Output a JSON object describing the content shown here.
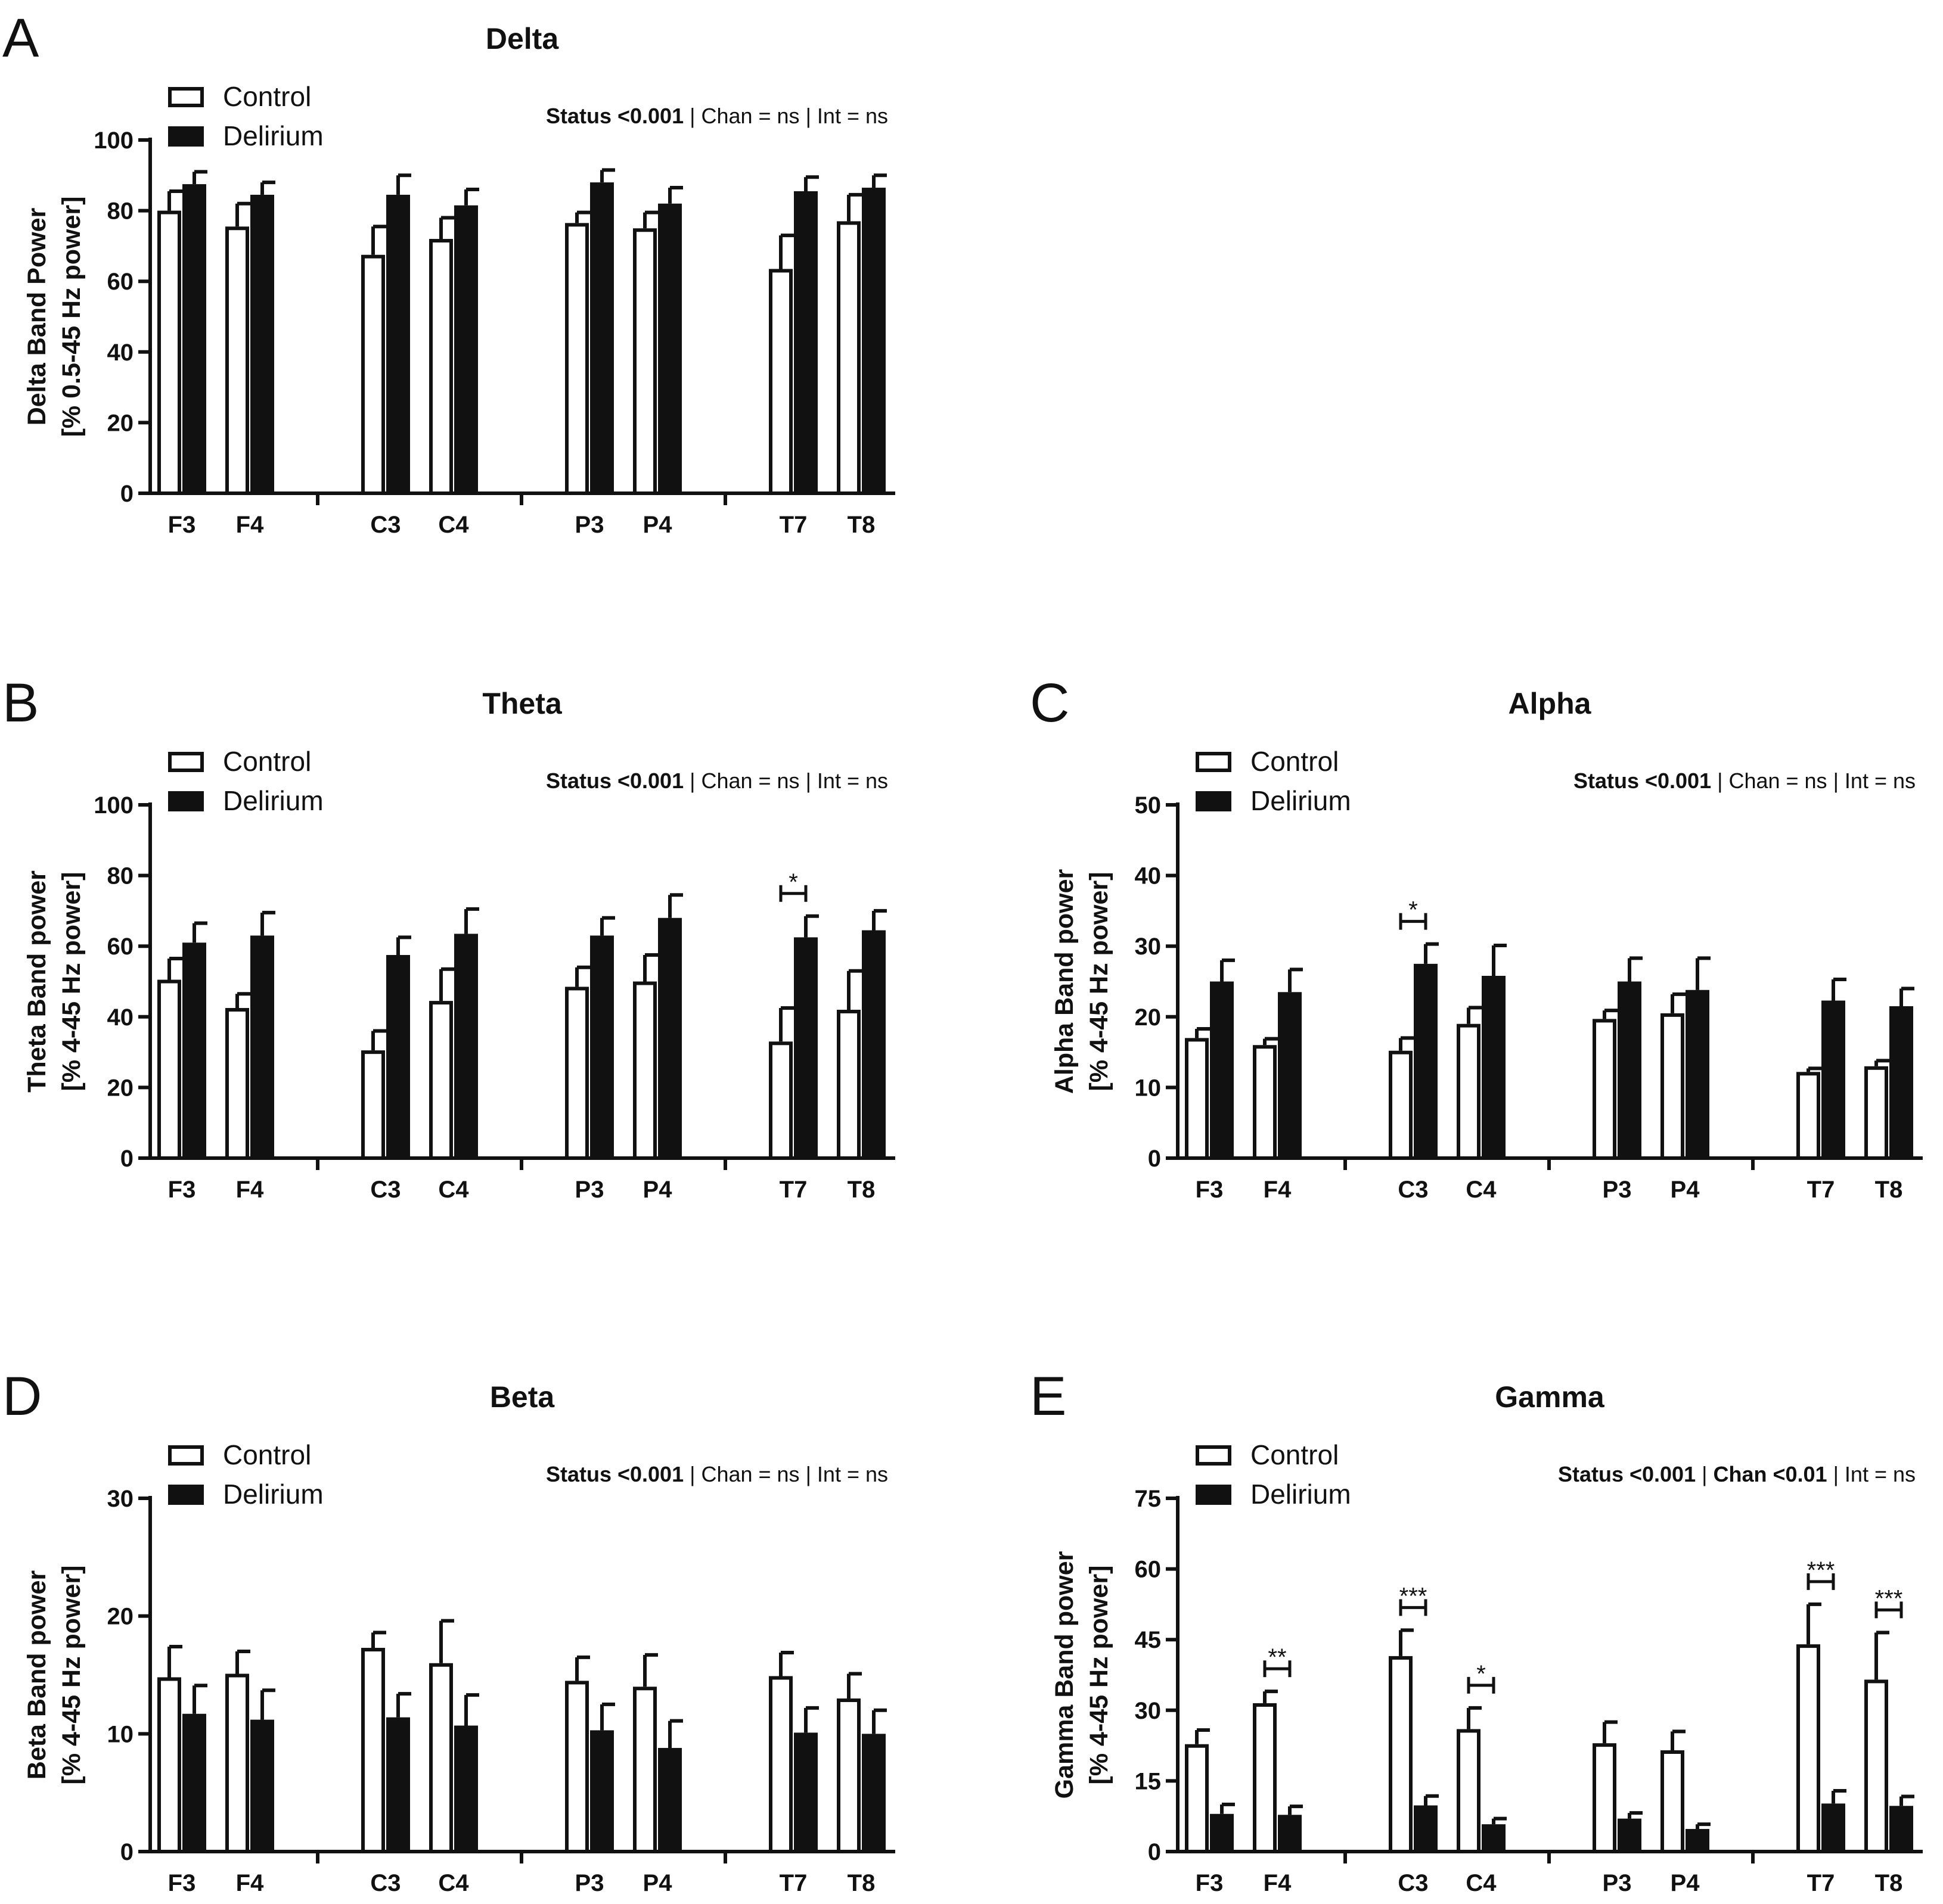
{
  "legend_labels": [
    "Control",
    "Delirium"
  ],
  "chart_data": [
    {
      "id": "A",
      "type": "bar",
      "panel_letter": "A",
      "title": "Delta",
      "ylabel_line1": "Delta Band Power",
      "ylabel_line2": "[% 0.5-45 Hz power]",
      "ylim": [
        0,
        100
      ],
      "yticks": [
        "0",
        "20",
        "40",
        "60",
        "80",
        "100"
      ],
      "categories": [
        "F3",
        "F4",
        "C3",
        "C4",
        "P3",
        "P4",
        "T7",
        "T8"
      ],
      "series": [
        {
          "name": "Control",
          "values": [
            80,
            75.5,
            67.5,
            72,
            76.5,
            75,
            63.5,
            77
          ],
          "errors": [
            5.5,
            6.5,
            8,
            6,
            3,
            4.5,
            9.5,
            7.5
          ]
        },
        {
          "name": "Delirium",
          "values": [
            87.5,
            84.5,
            84.5,
            81.5,
            88,
            82,
            85.5,
            86.5
          ],
          "errors": [
            3.5,
            3.5,
            5.5,
            4.5,
            3.5,
            4.5,
            4,
            3.5
          ]
        }
      ],
      "stats": [
        {
          "text": "Status <0.001",
          "bold": true
        },
        {
          "text": " | Chan = ns | Int = ns",
          "bold": false
        }
      ],
      "significance": []
    },
    {
      "id": "B",
      "type": "bar",
      "panel_letter": "B",
      "title": "Theta",
      "ylabel_line1": "Theta Band power",
      "ylabel_line2": "[% 4-45 Hz power]",
      "ylim": [
        0,
        100
      ],
      "yticks": [
        "0",
        "20",
        "40",
        "60",
        "80",
        "100"
      ],
      "categories": [
        "F3",
        "F4",
        "C3",
        "C4",
        "P3",
        "P4",
        "T7",
        "T8"
      ],
      "series": [
        {
          "name": "Control",
          "values": [
            50.5,
            42.5,
            30.5,
            44.5,
            48.5,
            50,
            33,
            42
          ],
          "errors": [
            6,
            4,
            5.5,
            9,
            5.5,
            7.5,
            9.5,
            11
          ]
        },
        {
          "name": "Delirium",
          "values": [
            61,
            63,
            57.5,
            63.5,
            63,
            68,
            62.5,
            64.5
          ],
          "errors": [
            5.5,
            6.5,
            5,
            7,
            5,
            6.5,
            6,
            5.5
          ]
        }
      ],
      "stats": [
        {
          "text": "Status <0.001",
          "bold": true
        },
        {
          "text": " | Chan = ns | Int = ns",
          "bold": false
        }
      ],
      "significance": [
        {
          "index": 6,
          "label": "*"
        }
      ]
    },
    {
      "id": "C",
      "type": "bar",
      "panel_letter": "C",
      "title": "Alpha",
      "ylabel_line1": "Alpha Band power",
      "ylabel_line2": "[% 4-45 Hz power]",
      "ylim": [
        0,
        50
      ],
      "yticks": [
        "0",
        "10",
        "20",
        "30",
        "40",
        "50"
      ],
      "categories": [
        "F3",
        "F4",
        "C3",
        "C4",
        "P3",
        "P4",
        "T7",
        "T8"
      ],
      "series": [
        {
          "name": "Control",
          "values": [
            17,
            16,
            15.2,
            19,
            19.7,
            20.5,
            12.2,
            13
          ],
          "errors": [
            1.3,
            0.9,
            1.8,
            2.3,
            1.2,
            2.7,
            0.5,
            0.8
          ]
        },
        {
          "name": "Delirium",
          "values": [
            25,
            23.5,
            27.5,
            25.8,
            25,
            23.8,
            22.3,
            21.5
          ],
          "errors": [
            3,
            3.2,
            2.8,
            4.3,
            3.3,
            4.5,
            3,
            2.5
          ]
        }
      ],
      "stats": [
        {
          "text": "Status <0.001",
          "bold": true
        },
        {
          "text": " | Chan = ns | Int = ns",
          "bold": false
        }
      ],
      "significance": [
        {
          "index": 2,
          "label": "*"
        }
      ]
    },
    {
      "id": "D",
      "type": "bar",
      "panel_letter": "D",
      "title": "Beta",
      "ylabel_line1": "Beta Band power",
      "ylabel_line2": "[% 4-45 Hz power]",
      "ylim": [
        0,
        30
      ],
      "yticks": [
        "0",
        "10",
        "20",
        "30"
      ],
      "categories": [
        "F3",
        "F4",
        "C3",
        "C4",
        "P3",
        "P4",
        "T7",
        "T8"
      ],
      "series": [
        {
          "name": "Control",
          "values": [
            14.8,
            15.1,
            17.3,
            16,
            14.5,
            14,
            14.9,
            13
          ],
          "errors": [
            2.6,
            1.9,
            1.3,
            3.6,
            2,
            2.7,
            2,
            2.1
          ]
        },
        {
          "name": "Delirium",
          "values": [
            11.7,
            11.2,
            11.4,
            10.7,
            10.3,
            8.8,
            10.1,
            10
          ],
          "errors": [
            2.4,
            2.5,
            2,
            2.6,
            2.2,
            2.3,
            2.1,
            2
          ]
        }
      ],
      "stats": [
        {
          "text": "Status <0.001",
          "bold": true
        },
        {
          "text": " | Chan = ns | Int = ns",
          "bold": false
        }
      ],
      "significance": []
    },
    {
      "id": "E",
      "type": "bar",
      "panel_letter": "E",
      "title": "Gamma",
      "ylabel_line1": "Gamma Band power",
      "ylabel_line2": "[% 4-45 Hz power]",
      "ylim": [
        0,
        75
      ],
      "yticks": [
        "0",
        "15",
        "30",
        "45",
        "60",
        "75"
      ],
      "categories": [
        "F3",
        "F4",
        "C3",
        "C4",
        "P3",
        "P4",
        "T7",
        "T8"
      ],
      "series": [
        {
          "name": "Control",
          "values": [
            22.8,
            31.5,
            41.5,
            26,
            23,
            21.5,
            44,
            36.5
          ],
          "errors": [
            3,
            2.5,
            5.5,
            4.5,
            4.5,
            4,
            8.5,
            10
          ]
        },
        {
          "name": "Delirium",
          "values": [
            8,
            7.8,
            9.8,
            5.8,
            7,
            4.8,
            10.2,
            9.7
          ],
          "errors": [
            2,
            1.8,
            2,
            1.2,
            1.2,
            1,
            2.7,
            2
          ]
        }
      ],
      "stats": [
        {
          "text": "Status <0.001",
          "bold": true
        },
        {
          "text": " | ",
          "bold": false
        },
        {
          "text": "Chan <0.01",
          "bold": true
        },
        {
          "text": " | Int = ns",
          "bold": false
        }
      ],
      "significance": [
        {
          "index": 1,
          "label": "**"
        },
        {
          "index": 2,
          "label": "***"
        },
        {
          "index": 3,
          "label": "*"
        },
        {
          "index": 6,
          "label": "***"
        },
        {
          "index": 7,
          "label": "***"
        }
      ]
    }
  ]
}
